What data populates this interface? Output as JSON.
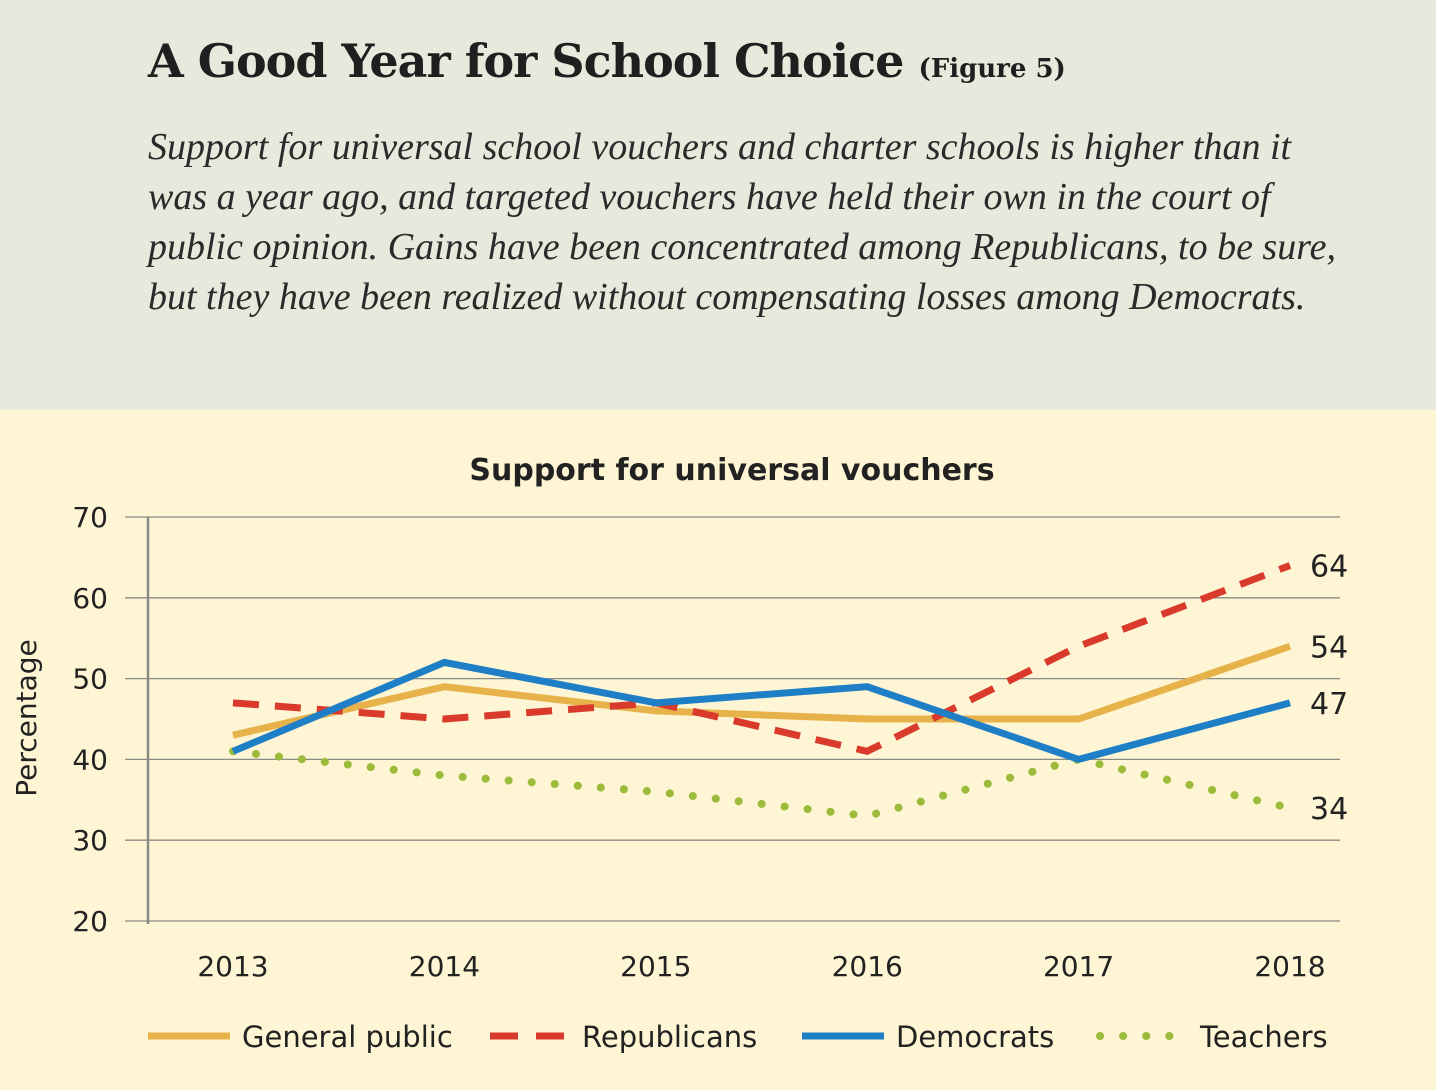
{
  "header": {
    "title": "A Good Year for School Choice",
    "figure_label": "(Figure 5)",
    "subtitle": "Support for universal school vouchers and charter schools is higher than it was a year ago, and targeted vouchers have held their own in the court of public opinion. Gains have been concentrated among Republicans, to be sure, but they have been realized without compensating losses among Democrats."
  },
  "colors": {
    "header_bg": "#e7e9dc",
    "chart_bg": "#fdf5d3",
    "general_public": "#e8b24a",
    "republicans": "#d93a2b",
    "democrats": "#1f7fc6",
    "teachers": "#9dbb3a"
  },
  "chart_data": {
    "type": "line",
    "title": "Support for universal vouchers",
    "xlabel": "",
    "ylabel": "Percentage",
    "x": [
      "2013",
      "2014",
      "2015",
      "2016",
      "2017",
      "2018"
    ],
    "ylim": [
      20,
      70
    ],
    "yticks": [
      20,
      30,
      40,
      50,
      60,
      70
    ],
    "grid": true,
    "legend_position": "bottom",
    "series": [
      {
        "name": "General public",
        "values": [
          43,
          49,
          46,
          45,
          45,
          54
        ],
        "end_label": "54",
        "style": "solid",
        "color": "#e8b24a"
      },
      {
        "name": "Republicans",
        "values": [
          47,
          45,
          47,
          41,
          54,
          64
        ],
        "end_label": "64",
        "style": "dashed",
        "color": "#d93a2b"
      },
      {
        "name": "Democrats",
        "values": [
          41,
          52,
          47,
          49,
          40,
          47
        ],
        "end_label": "47",
        "style": "solid",
        "color": "#1f7fc6"
      },
      {
        "name": "Teachers",
        "values": [
          41,
          38,
          36,
          33,
          40,
          34
        ],
        "end_label": "34",
        "style": "dotted",
        "color": "#9dbb3a"
      }
    ]
  }
}
